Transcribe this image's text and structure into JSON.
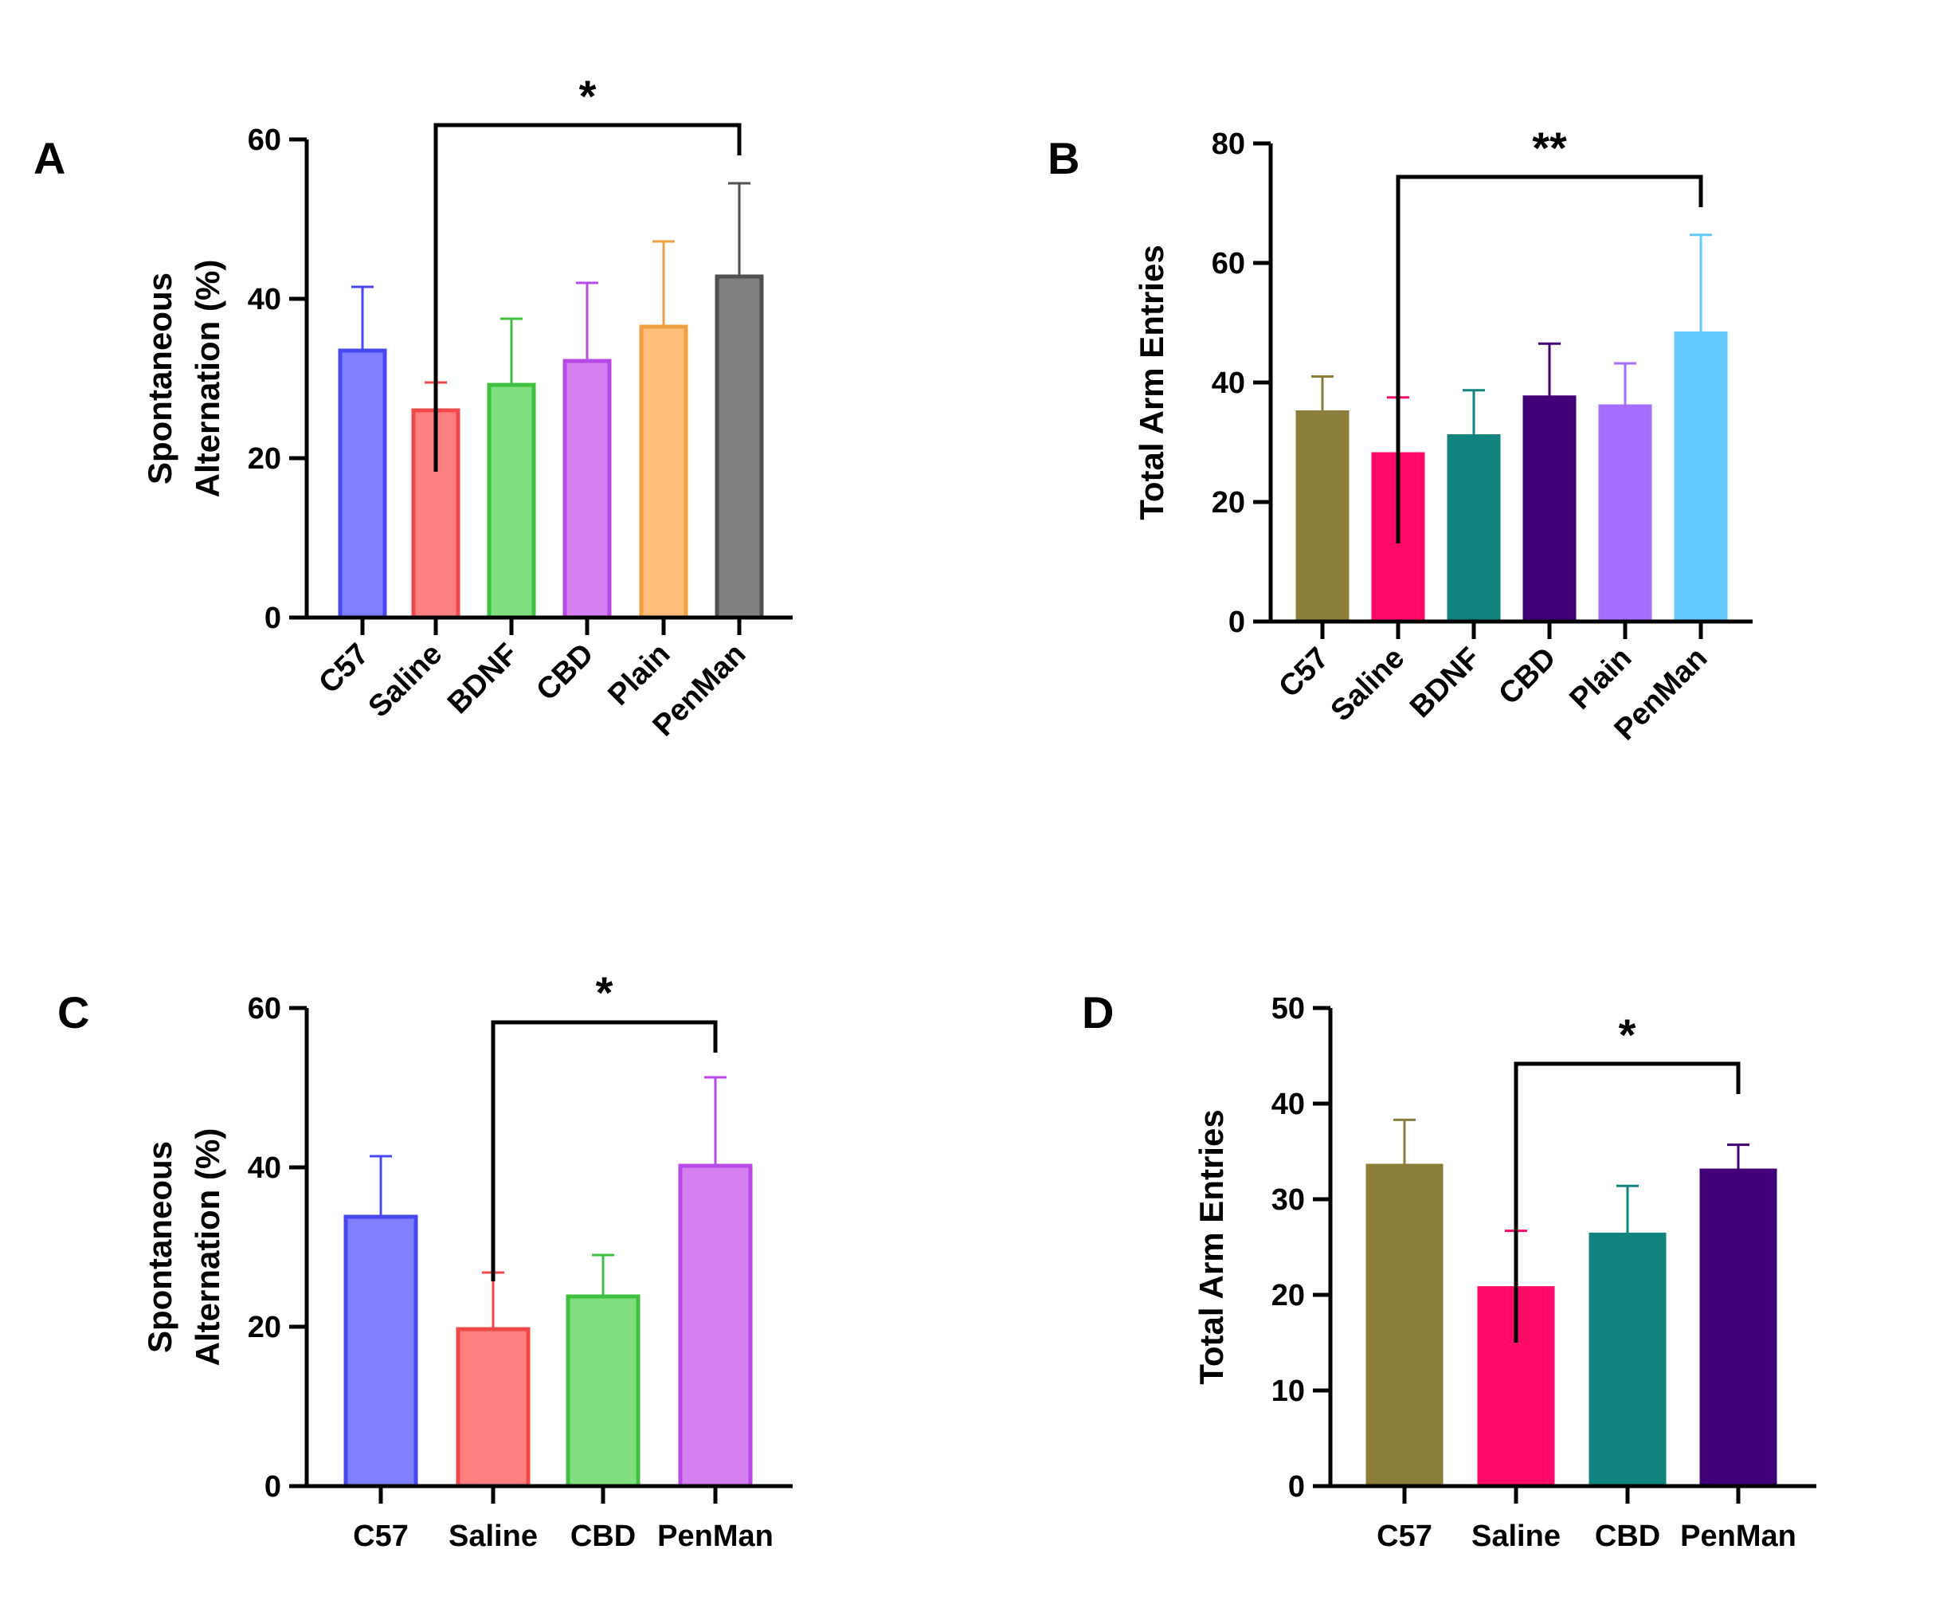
{
  "chart_data": [
    {
      "panel": "A",
      "type": "bar",
      "categories": [
        "C57",
        "Saline",
        "BDNF",
        "CBD",
        "Plain",
        "PenMan"
      ],
      "values": [
        33.5,
        26,
        29.2,
        32.2,
        36.5,
        42.8
      ],
      "errors": [
        8,
        3.5,
        8.3,
        9.8,
        10.7,
        11.7
      ],
      "colors": [
        "#8080ff",
        "#ff8080",
        "#80e080",
        "#d580f0",
        "#ffbe7a",
        "#808080"
      ],
      "outline_colors": [
        "#4848f0",
        "#f04848",
        "#40c040",
        "#b848e8",
        "#f0a040",
        "#505050"
      ],
      "ylabel": [
        "Spontaneous",
        "Alternation (%)"
      ],
      "ylim": [
        0,
        60
      ],
      "yticks": [
        0,
        20,
        40,
        60
      ],
      "significance": {
        "from": "Saline",
        "to": "PenMan",
        "label": "*"
      }
    },
    {
      "panel": "B",
      "type": "bar",
      "categories": [
        "C57",
        "Saline",
        "BDNF",
        "CBD",
        "Plain",
        "PenMan"
      ],
      "values": [
        35,
        28,
        31,
        37.5,
        36,
        48.2
      ],
      "errors": [
        6,
        9.5,
        7.7,
        9,
        7.2,
        16.5
      ],
      "colors": [
        "#8b7d3a",
        "#ff0a68",
        "#128480",
        "#420078",
        "#a46cff",
        "#62caff"
      ],
      "outline_colors": [
        "#8b7d3a",
        "#ff0a68",
        "#128480",
        "#420078",
        "#a46cff",
        "#62caff"
      ],
      "ylabel": [
        "Total Arm Entries"
      ],
      "ylim": [
        0,
        80
      ],
      "yticks": [
        0,
        20,
        40,
        60,
        80
      ],
      "significance": {
        "from": "Saline",
        "to": "PenMan",
        "label": "**"
      }
    },
    {
      "panel": "C",
      "type": "bar",
      "categories": [
        "C57",
        "Saline",
        "CBD",
        "PenMan"
      ],
      "values": [
        33.8,
        19.7,
        23.8,
        40.2
      ],
      "errors": [
        7.6,
        7.1,
        5.2,
        11.1
      ],
      "colors": [
        "#8080ff",
        "#ff8080",
        "#80e080",
        "#d580f0"
      ],
      "outline_colors": [
        "#4848f0",
        "#f04848",
        "#40c040",
        "#b848e8"
      ],
      "ylabel": [
        "Spontaneous",
        "Alternation (%)"
      ],
      "ylim": [
        0,
        60
      ],
      "yticks": [
        0,
        20,
        40,
        60
      ],
      "significance": {
        "from": "Saline",
        "to": "PenMan",
        "label": "*"
      }
    },
    {
      "panel": "D",
      "type": "bar",
      "categories": [
        "C57",
        "Saline",
        "CBD",
        "PenMan"
      ],
      "values": [
        33.5,
        20.7,
        26.3,
        33
      ],
      "errors": [
        4.8,
        6,
        5.1,
        2.7
      ],
      "colors": [
        "#8b7d3a",
        "#ff0a68",
        "#128480",
        "#420078"
      ],
      "outline_colors": [
        "#8b7d3a",
        "#ff0a68",
        "#128480",
        "#420078"
      ],
      "ylabel": [
        "Total Arm Entries"
      ],
      "ylim": [
        0,
        50
      ],
      "yticks": [
        0,
        10,
        20,
        30,
        40,
        50
      ],
      "significance": {
        "from": "Saline",
        "to": "PenMan",
        "label": "*"
      }
    }
  ]
}
